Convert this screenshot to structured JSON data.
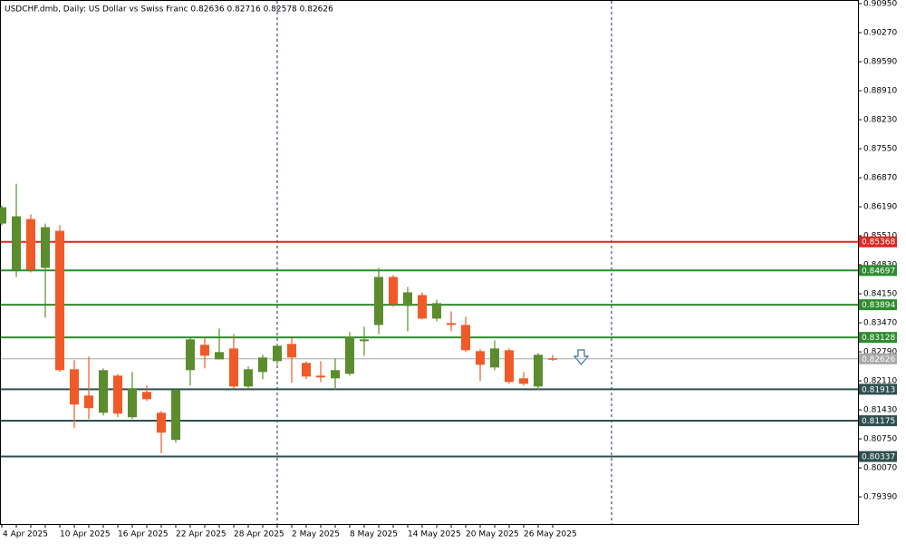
{
  "chart_data": {
    "type": "candlestick",
    "title": "USDCHF.dmb, Daily:  US Dollar vs Swiss Franc  0.82636 0.82716 0.82578 0.82626",
    "categories": [
      "4 Apr 2025",
      null,
      null,
      null,
      "10 Apr 2025",
      null,
      null,
      null,
      "16 Apr 2025",
      null,
      null,
      null,
      "22 Apr 2025",
      null,
      null,
      null,
      "28 Apr 2025",
      null,
      null,
      null,
      "2 May 2025",
      null,
      null,
      null,
      "8 May 2025",
      null,
      null,
      null,
      "14 May 2025",
      null,
      null,
      null,
      "20 May 2025",
      null,
      null,
      null,
      "26 May 2025",
      null,
      null
    ],
    "open": [
      0.85796,
      0.84714,
      0.85902,
      0.84757,
      0.85626,
      0.82381,
      0.81766,
      0.81363,
      0.82233,
      0.81257,
      0.81851,
      0.81363,
      0.80727,
      0.8236,
      0.82954,
      0.82614,
      0.82869,
      0.81978,
      0.82318,
      0.82572,
      0.82975,
      0.8253,
      0.82233,
      0.82169,
      0.82275,
      0.83039,
      0.8342,
      0.84544,
      0.83866,
      0.8412,
      0.83569,
      0.83463,
      0.8342,
      0.82805,
      0.82424,
      0.82827,
      0.82169,
      0.81978,
      0.82636
    ],
    "high": [
      0.8622,
      0.86729,
      0.86008,
      0.85796,
      0.85754,
      0.82593,
      0.82678,
      0.82402,
      0.82275,
      0.82318,
      0.81999,
      0.81405,
      0.81936,
      0.83124,
      0.83124,
      0.83336,
      0.83208,
      0.82445,
      0.82721,
      0.82975,
      0.83124,
      0.82572,
      0.82572,
      0.82636,
      0.83251,
      0.83378,
      0.84757,
      0.84587,
      0.84311,
      0.84184,
      0.84014,
      0.83739,
      0.83611,
      0.82848,
      0.8306,
      0.82869,
      0.82318,
      0.82763,
      0.82716
    ],
    "low": [
      0.85754,
      0.84544,
      0.84651,
      0.8359,
      0.82318,
      0.81003,
      0.81215,
      0.81299,
      0.81257,
      0.81215,
      0.81639,
      0.80409,
      0.80663,
      0.81999,
      0.82402,
      0.82614,
      0.81936,
      0.81936,
      0.82148,
      0.82487,
      0.82063,
      0.82148,
      0.82084,
      0.81893,
      0.82233,
      0.82699,
      0.83208,
      0.83845,
      0.83272,
      0.83548,
      0.83505,
      0.83272,
      0.82784,
      0.82105,
      0.8236,
      0.82042,
      0.81999,
      0.81893,
      0.82578
    ],
    "close": [
      0.86178,
      0.85966,
      0.84714,
      0.85711,
      0.8236,
      0.81554,
      0.81469,
      0.8236,
      0.81342,
      0.81936,
      0.81681,
      0.80896,
      0.81893,
      0.83081,
      0.82699,
      0.82784,
      0.81978,
      0.82381,
      0.82657,
      0.82933,
      0.82657,
      0.82211,
      0.8219,
      0.8236,
      0.83145,
      0.83081,
      0.84544,
      0.83908,
      0.84184,
      0.83569,
      0.8393,
      0.8342,
      0.82827,
      0.82487,
      0.82869,
      0.82084,
      0.82042,
      0.82721,
      0.82626
    ],
    "up_color": "#5b8c2d",
    "down_color": "#f05a28",
    "ylim": [
      0.78754,
      0.91014
    ],
    "yticks": [
      {
        "value": 0.9095,
        "label": "0.90950"
      },
      {
        "value": 0.9027,
        "label": "0.90270"
      },
      {
        "value": 0.8959,
        "label": "0.89590"
      },
      {
        "value": 0.8891,
        "label": "0.88910"
      },
      {
        "value": 0.8823,
        "label": "0.88230"
      },
      {
        "value": 0.8755,
        "label": "0.87550"
      },
      {
        "value": 0.8687,
        "label": "0.86870"
      },
      {
        "value": 0.8619,
        "label": "0.86190"
      },
      {
        "value": 0.8551,
        "label": "0.85510"
      },
      {
        "value": 0.8483,
        "label": "0.84830"
      },
      {
        "value": 0.8415,
        "label": "0.84150"
      },
      {
        "value": 0.8347,
        "label": "0.83470"
      },
      {
        "value": 0.8279,
        "label": "0.82790"
      },
      {
        "value": 0.8211,
        "label": "0.82110"
      },
      {
        "value": 0.8143,
        "label": "0.81430"
      },
      {
        "value": 0.8075,
        "label": "0.80750"
      },
      {
        "value": 0.8007,
        "label": "0.80070"
      },
      {
        "value": 0.7939,
        "label": "0.79390"
      }
    ],
    "levels": [
      {
        "value": 0.85368,
        "color": "#e02424"
      },
      {
        "value": 0.84697,
        "color": "#2e8b2e"
      },
      {
        "value": 0.83894,
        "color": "#2e8b2e"
      },
      {
        "value": 0.83128,
        "color": "#2e8b2e"
      },
      {
        "value": 0.82626,
        "color": "#a8a8a8"
      },
      {
        "value": 0.81913,
        "color": "#2f4f4f"
      },
      {
        "value": 0.81175,
        "color": "#2f4f4f"
      },
      {
        "value": 0.80337,
        "color": "#2f4f4f"
      }
    ]
  }
}
